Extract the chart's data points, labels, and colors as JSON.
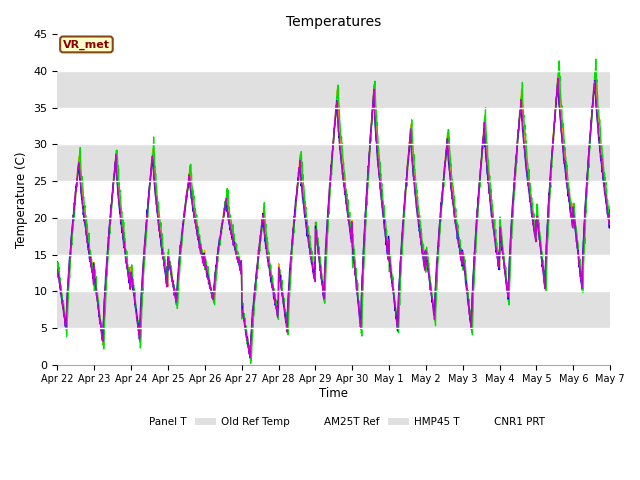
{
  "title": "Temperatures",
  "ylabel": "Temperature (C)",
  "xlabel": "Time",
  "ylim": [
    0,
    45
  ],
  "bg_color": "#d8d8d8",
  "fig_bg": "#ffffff",
  "station_label": "VR_met",
  "legend": [
    "Panel T",
    "Old Ref Temp",
    "AM25T Ref",
    "HMP45 T",
    "CNR1 PRT"
  ],
  "line_colors": [
    "#ff0000",
    "#ffa500",
    "#00dd00",
    "#0000ff",
    "#cc00cc"
  ],
  "xtick_labels": [
    "Apr 22",
    "Apr 23",
    "Apr 24",
    "Apr 25",
    "Apr 26",
    "Apr 27",
    "Apr 28",
    "Apr 29",
    "Apr 30",
    "May 1",
    "May 2",
    "May 3",
    "May 4",
    "May 5",
    "May 6",
    "May 7"
  ],
  "n_days": 15,
  "band_colors": [
    "#ffffff",
    "#e0e0e0"
  ],
  "band_edges": [
    0,
    5,
    10,
    15,
    20,
    25,
    30,
    35,
    40,
    45
  ]
}
